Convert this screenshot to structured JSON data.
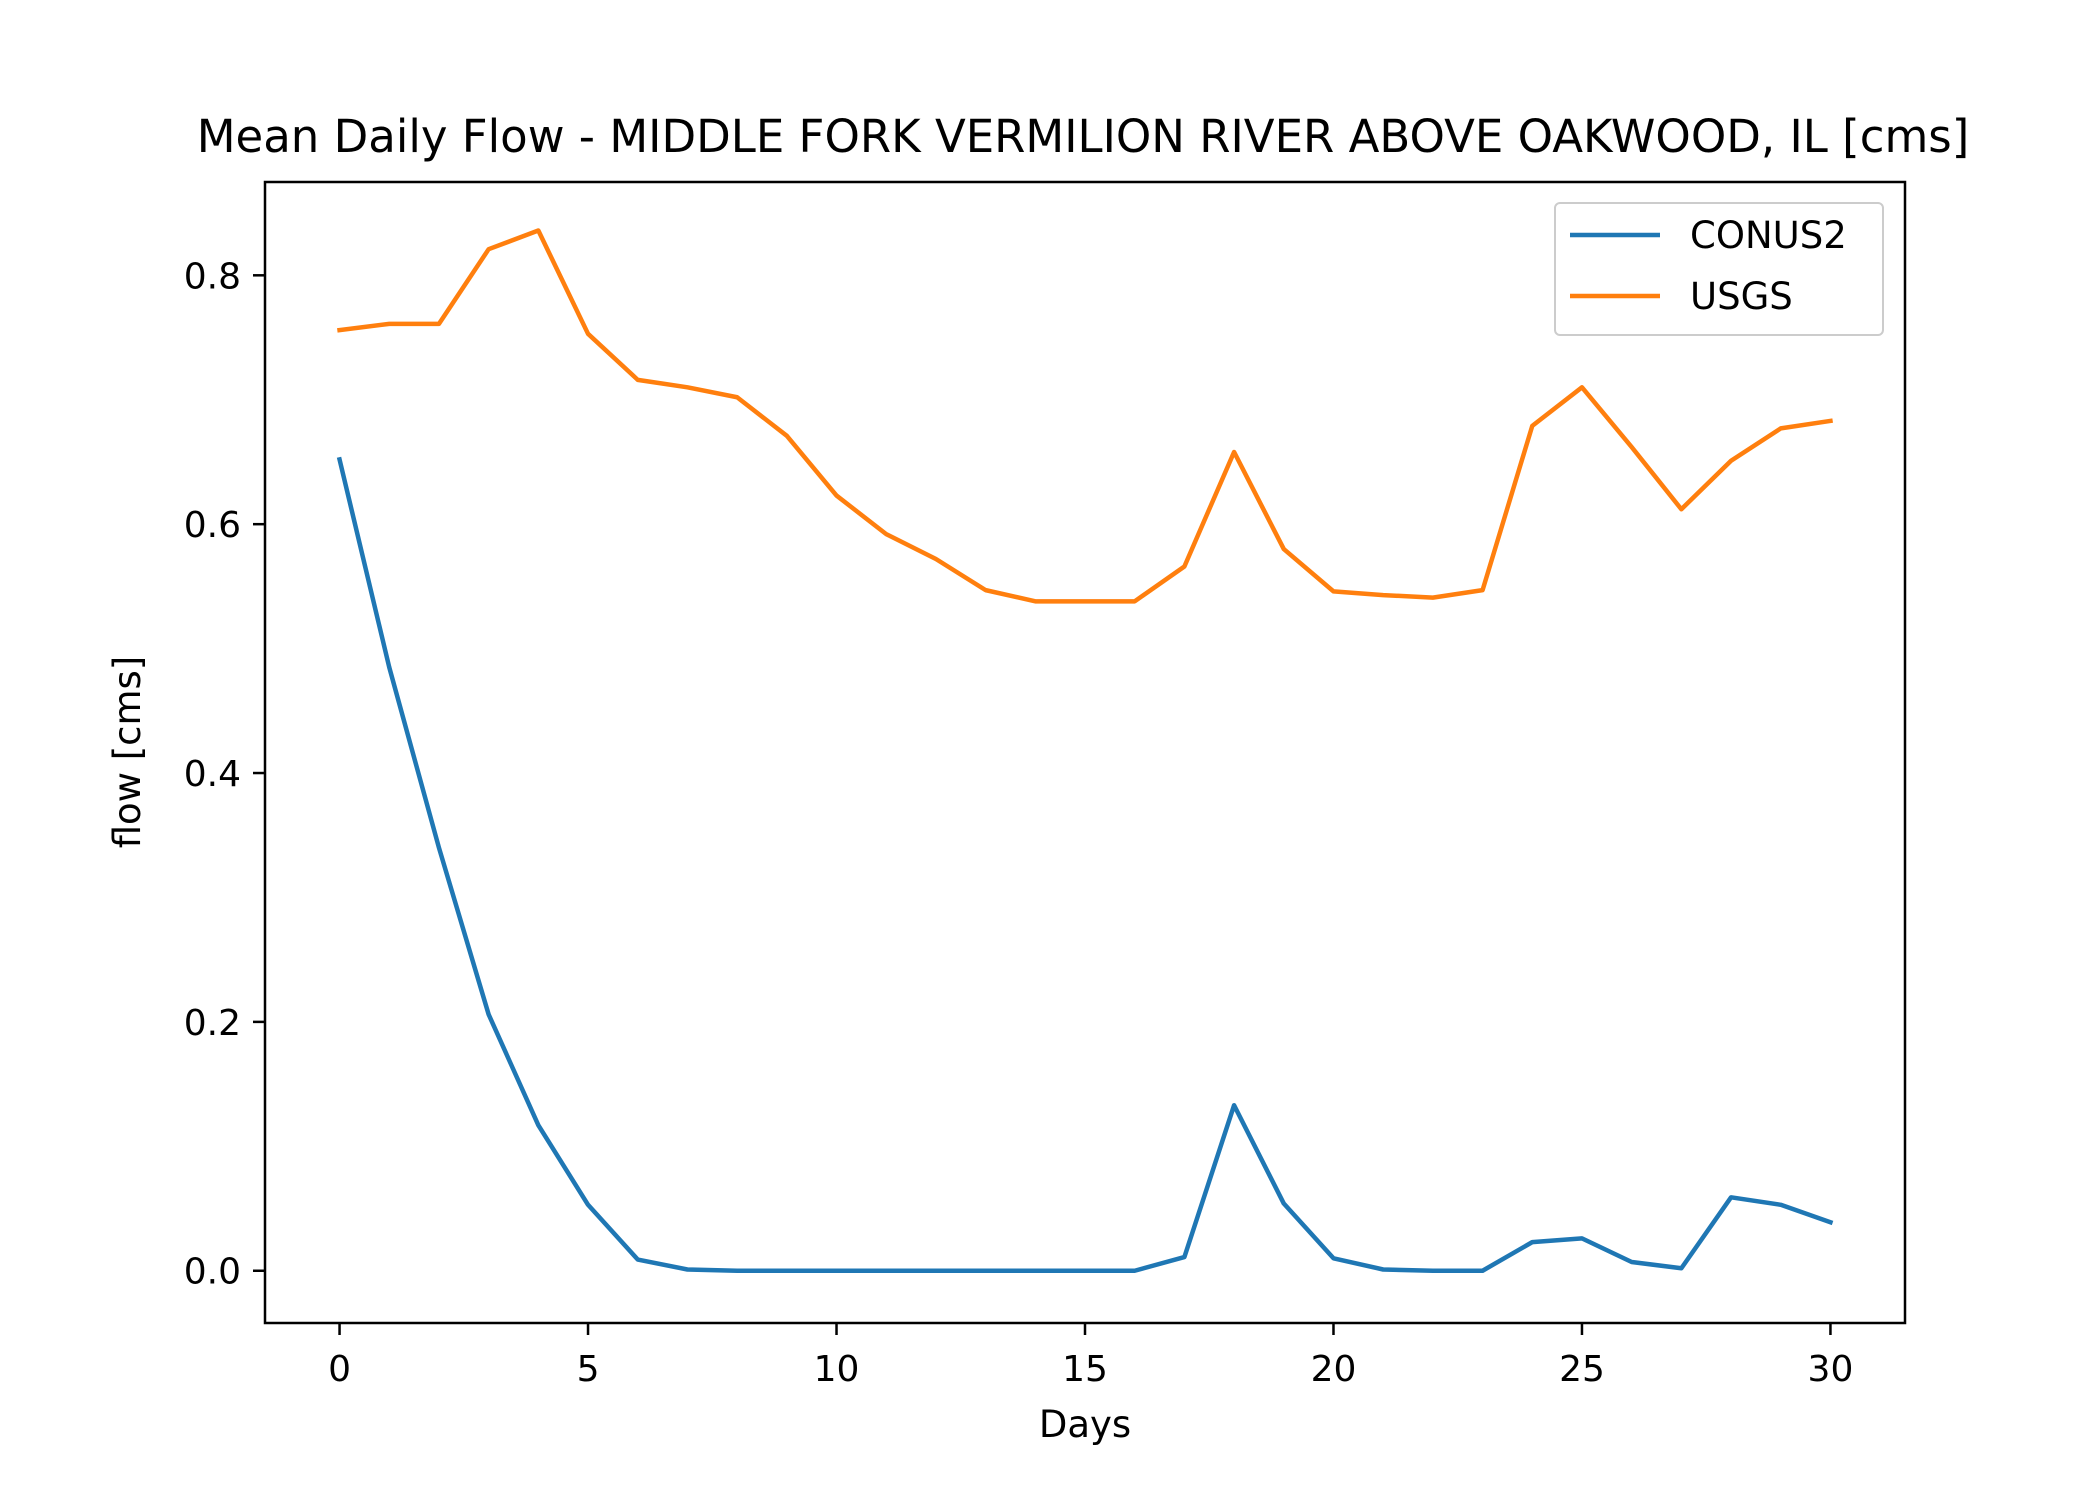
{
  "chart_data": {
    "type": "line",
    "title": "Mean Daily Flow - MIDDLE FORK VERMILION RIVER ABOVE OAKWOOD, IL [cms]",
    "xlabel": "Days",
    "ylabel": "flow [cms]",
    "xlim": [
      -1.5,
      31.5
    ],
    "ylim": [
      -0.042,
      0.875
    ],
    "xticks": [
      0,
      5,
      10,
      15,
      20,
      25,
      30
    ],
    "xtick_labels": [
      "0",
      "5",
      "10",
      "15",
      "20",
      "25",
      "30"
    ],
    "yticks": [
      0.0,
      0.2,
      0.4,
      0.6,
      0.8
    ],
    "ytick_labels": [
      "0.0",
      "0.2",
      "0.4",
      "0.6",
      "0.8"
    ],
    "grid": false,
    "legend_position": "top-right",
    "x": [
      0,
      1,
      2,
      3,
      4,
      5,
      6,
      7,
      8,
      9,
      10,
      11,
      12,
      13,
      14,
      15,
      16,
      17,
      18,
      19,
      20,
      21,
      22,
      23,
      24,
      25,
      26,
      27,
      28,
      29,
      30
    ],
    "series": [
      {
        "name": "CONUS2",
        "color": "#1f77b4",
        "values": [
          0.652,
          0.485,
          0.34,
          0.206,
          0.117,
          0.053,
          0.009,
          0.001,
          0.0,
          0.0,
          0.0,
          0.0,
          0.0,
          0.0,
          0.0,
          0.0,
          0.0,
          0.011,
          0.133,
          0.054,
          0.01,
          0.001,
          0.0,
          0.0,
          0.023,
          0.026,
          0.007,
          0.002,
          0.059,
          0.053,
          0.039
        ]
      },
      {
        "name": "USGS",
        "color": "#ff7f0e",
        "values": [
          0.756,
          0.761,
          0.761,
          0.821,
          0.836,
          0.753,
          0.716,
          0.71,
          0.702,
          0.671,
          0.623,
          0.592,
          0.572,
          0.547,
          0.538,
          0.538,
          0.538,
          0.566,
          0.658,
          0.58,
          0.546,
          0.543,
          0.541,
          0.547,
          0.679,
          0.71,
          0.662,
          0.612,
          0.651,
          0.677,
          0.683
        ]
      }
    ]
  }
}
